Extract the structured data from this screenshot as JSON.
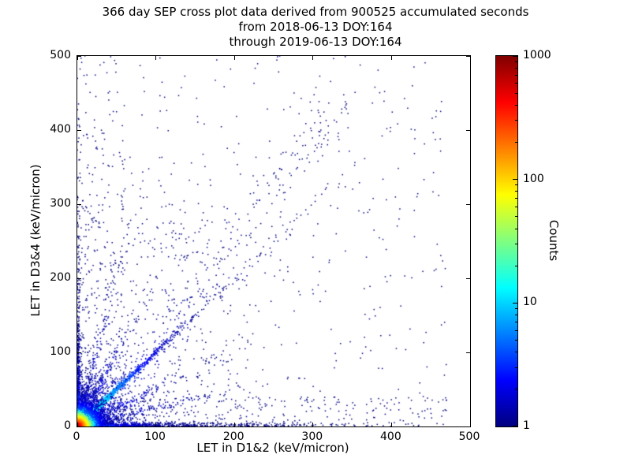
{
  "title": {
    "line1": "366 day SEP cross plot data derived from 900525 accumulated seconds",
    "line2": "from 2018-06-13 DOY:164",
    "line3": "through 2019-06-13 DOY:164"
  },
  "chart_data": {
    "type": "scatter",
    "xlabel": "LET in D1&2 (keV/micron)",
    "ylabel": "LET in D3&4 (keV/micron)",
    "xlim": [
      0,
      500
    ],
    "ylim": [
      0,
      500
    ],
    "grid": false,
    "background_color": "#ffffff",
    "frame_color": "#000000",
    "xticks": {
      "values": [
        0,
        100,
        200,
        300,
        400,
        500
      ],
      "labels": [
        "0",
        "100",
        "200",
        "300",
        "400",
        "500"
      ]
    },
    "yticks": {
      "values": [
        0,
        100,
        200,
        300,
        400,
        500
      ],
      "labels": [
        "0",
        "100",
        "200",
        "300",
        "400",
        "500"
      ]
    },
    "colorbar": {
      "label": "Counts",
      "scale": "log",
      "range": [
        1,
        1000
      ],
      "major_ticks": {
        "values": [
          1,
          10,
          100,
          1000
        ],
        "labels": [
          "1",
          "10",
          "100",
          "1000"
        ]
      },
      "minor_ticks": [
        2,
        3,
        4,
        5,
        6,
        7,
        8,
        9,
        20,
        30,
        40,
        50,
        60,
        70,
        80,
        90,
        200,
        300,
        400,
        500,
        600,
        700,
        800,
        900
      ],
      "stops": [
        [
          0,
          "#000080"
        ],
        [
          0.125,
          "#0000ff"
        ],
        [
          0.375,
          "#00ffff"
        ],
        [
          0.625,
          "#ffff00"
        ],
        [
          0.875,
          "#ff0000"
        ],
        [
          1,
          "#800000"
        ]
      ]
    },
    "seed": 20180613,
    "description": "Dense hot spot (counts up to ~1000) at origin, strong y=x diagonal track, tracks hugging both axes out to ~450 keV/micron, secondary diagonal stream near slope ~1.3 from ~(110,140) to ~(345,440), sparse single-count (dark blue) background points across the plane",
    "clusters": [
      {
        "type": "uniform",
        "n": 420,
        "xmin": 0,
        "xmax": 470,
        "ymin": 0,
        "ymax": 500,
        "count": 1
      },
      {
        "type": "uniform",
        "n": 350,
        "xmin": 0,
        "xmax": 200,
        "ymin": 0,
        "ymax": 300,
        "count": 1
      },
      {
        "type": "uniform",
        "n": 200,
        "xmin": 0,
        "xmax": 60,
        "ymin": 0,
        "ymax": 500,
        "count": 1
      },
      {
        "type": "uniform",
        "n": 200,
        "xmin": 0,
        "xmax": 470,
        "ymin": 0,
        "ymax": 40,
        "count": 1
      },
      {
        "type": "ray",
        "n": 900,
        "angle": 0,
        "r_scale": 90,
        "r_min": 0,
        "r_max": 470,
        "sigma": 2.5,
        "count_base": 8,
        "count_r": 30
      },
      {
        "type": "ray",
        "n": 600,
        "angle": 90,
        "r_scale": 80,
        "r_min": 0,
        "r_max": 500,
        "sigma": 2.0,
        "count_base": 8,
        "count_r": 30
      },
      {
        "type": "ray",
        "n": 180,
        "angle": 14,
        "r_scale": 90,
        "r_min": 0,
        "r_max": 460,
        "sigma": 3,
        "count_base": 3,
        "count_r": 60
      },
      {
        "type": "ray",
        "n": 180,
        "angle": 76,
        "r_scale": 90,
        "r_min": 0,
        "r_max": 460,
        "sigma": 3,
        "count_base": 3,
        "count_r": 60
      },
      {
        "type": "ray",
        "n": 250,
        "angle": 27,
        "r_scale": 70,
        "r_min": 0,
        "r_max": 450,
        "sigma": 4,
        "count_base": 4,
        "count_r": 50
      },
      {
        "type": "ray",
        "n": 250,
        "angle": 63,
        "r_scale": 70,
        "r_min": 0,
        "r_max": 450,
        "sigma": 4,
        "count_base": 4,
        "count_r": 50
      },
      {
        "type": "ray",
        "n": 150,
        "angle": 52,
        "r_dist": "uniform",
        "r_min": 180,
        "r_max": 560,
        "r_scale": 0,
        "sigma": 14,
        "count_base": 1,
        "count_r": 100
      },
      {
        "type": "ray",
        "n": 300,
        "angle": 45,
        "r_scale": 140,
        "r_min": 0,
        "r_max": 640,
        "sigma": 7,
        "count_base": 2,
        "count_r": 100
      },
      {
        "type": "ray",
        "n": 1400,
        "angle": 45,
        "r_scale": 55,
        "r_min": 0,
        "r_max": 600,
        "sigma": 1.6,
        "count_base": 30,
        "count_r": 40
      },
      {
        "type": "blob",
        "n": 1200,
        "cx": 5,
        "cy": 5,
        "sx": 22,
        "sy": 22,
        "count_base": 8,
        "count_r": 15
      },
      {
        "type": "blob",
        "n": 3000,
        "cx": 3,
        "cy": 3,
        "sx": 9,
        "sy": 9,
        "count_base": 60,
        "count_r": 8
      },
      {
        "type": "blob",
        "n": 6000,
        "cx": 2,
        "cy": 2,
        "sx": 3,
        "sy": 3,
        "count_base": 1000,
        "count_r": 5
      }
    ]
  }
}
